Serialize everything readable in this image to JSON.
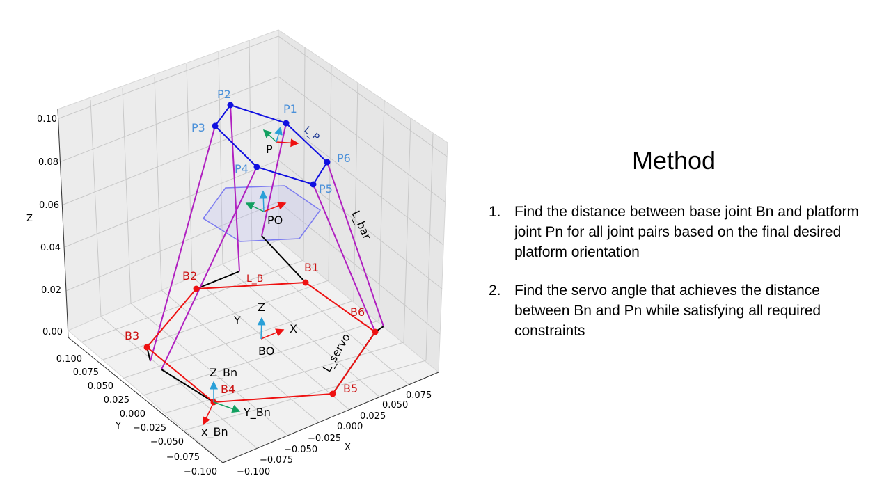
{
  "figure": {
    "z_ticks": [
      "0.00",
      "0.02",
      "0.04",
      "0.06",
      "0.08",
      "0.10"
    ],
    "y_ticks": [
      "0.100",
      "0.075",
      "0.050",
      "0.025",
      "0.000",
      "−0.025",
      "−0.050",
      "−0.075",
      "−0.100"
    ],
    "x_ticks": [
      "−0.100",
      "−0.075",
      "−0.050",
      "−0.025",
      "0.000",
      "0.025",
      "0.050",
      "0.075"
    ],
    "axis_labels": {
      "z": "Z",
      "y": "Y",
      "x": "X"
    },
    "platform_points": [
      "P1",
      "P2",
      "P3",
      "P4",
      "P5",
      "P6"
    ],
    "base_points": [
      "B1",
      "B2",
      "B3",
      "B4",
      "B5",
      "B6"
    ],
    "segment_labels": {
      "platform": "L_P",
      "base": "L_B",
      "bar": "L_bar",
      "servo": "L_servo"
    },
    "frames": {
      "platform": "P",
      "platform_origin": "PO",
      "base_origin": "BO",
      "base_axes": {
        "x": "X",
        "y": "Y",
        "z": "Z"
      },
      "joint_axes": {
        "x": "x_Bn",
        "y": "Y_Bn",
        "z": "Z_Bn"
      }
    },
    "colors": {
      "platform": "#1010e0",
      "base": "#ee1111",
      "bar": "#b020c0",
      "servo": "#000000",
      "platform_label": "#4a90d9",
      "base_label": "#cc1111",
      "hexagon": "#7b7bf0",
      "axis_x": "#ee1111",
      "axis_y": "#12a060",
      "axis_z": "#2aa0d8"
    }
  },
  "method": {
    "title": "Method",
    "steps": [
      {
        "num": "1.",
        "text": "Find the distance between base joint Bn and platform joint Pn for all joint pairs based on the final desired platform orientation"
      },
      {
        "num": "2.",
        "text": "Find the servo angle that achieves the distance between Bn and Pn while satisfying all required constraints"
      }
    ]
  }
}
